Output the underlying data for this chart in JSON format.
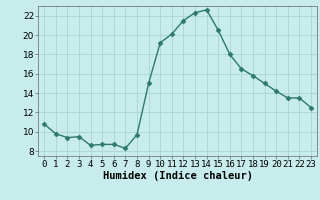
{
  "x": [
    0,
    1,
    2,
    3,
    4,
    5,
    6,
    7,
    8,
    9,
    10,
    11,
    12,
    13,
    14,
    15,
    16,
    17,
    18,
    19,
    20,
    21,
    22,
    23
  ],
  "y": [
    10.8,
    9.8,
    9.4,
    9.5,
    8.6,
    8.7,
    8.7,
    8.3,
    9.7,
    15.0,
    19.2,
    20.1,
    21.5,
    22.3,
    22.6,
    20.5,
    18.0,
    16.5,
    15.8,
    15.0,
    14.2,
    13.5,
    13.5,
    12.5
  ],
  "xlabel": "Humidex (Indice chaleur)",
  "xlim": [
    -0.5,
    23.5
  ],
  "ylim": [
    7.5,
    23.0
  ],
  "yticks": [
    8,
    10,
    12,
    14,
    16,
    18,
    20,
    22
  ],
  "xtick_labels": [
    "0",
    "1",
    "2",
    "3",
    "4",
    "5",
    "6",
    "7",
    "8",
    "9",
    "10",
    "11",
    "12",
    "13",
    "14",
    "15",
    "16",
    "17",
    "18",
    "19",
    "20",
    "21",
    "22",
    "23"
  ],
  "line_color": "#2d7a6a",
  "marker_color": "#2d7a6a",
  "bg_color": "#c8ecec",
  "grid_color": "#aed8d0",
  "label_fontsize": 7.5,
  "tick_fontsize": 6.5
}
